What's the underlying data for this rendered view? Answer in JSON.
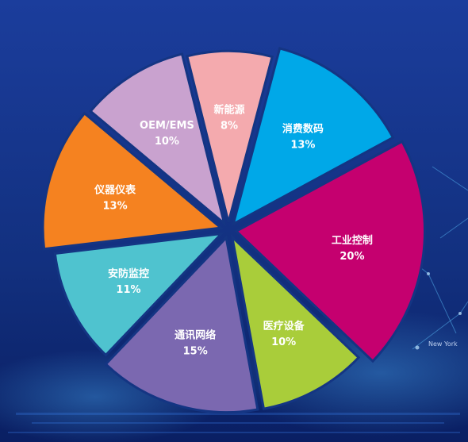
{
  "chart_data": {
    "type": "pie",
    "title": "",
    "slices": [
      {
        "label": "新能源",
        "value": 8,
        "value_label": "8%",
        "color": "#f4aaae"
      },
      {
        "label": "消费数码",
        "value": 13,
        "value_label": "13%",
        "color": "#00a8e8"
      },
      {
        "label": "工业控制",
        "value": 20,
        "value_label": "20%",
        "color": "#c5006f"
      },
      {
        "label": "医疗设备",
        "value": 10,
        "value_label": "10%",
        "color": "#a9cd3a"
      },
      {
        "label": "通讯网络",
        "value": 15,
        "value_label": "15%",
        "color": "#7b68b0"
      },
      {
        "label": "安防监控",
        "value": 11,
        "value_label": "11%",
        "color": "#4fc3cf"
      },
      {
        "label": "仪器仪表",
        "value": 13,
        "value_label": "13%",
        "color": "#f58220"
      },
      {
        "label": "OEM/EMS",
        "value": 10,
        "value_label": "10%",
        "color": "#c9a2cf"
      }
    ]
  },
  "background": {
    "city_label": "New York",
    "colors": {
      "top": "#1a3a9a",
      "bottom": "#0a1f63",
      "accent": "#3fb6ff"
    }
  }
}
